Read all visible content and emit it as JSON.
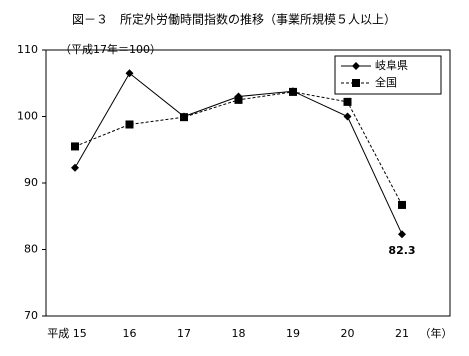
{
  "chart_data": {
    "type": "line",
    "title": "図－３　所定外労働時間指数の推移（事業所規模５人以上）",
    "subtitle": "（平成17年＝100）",
    "x_label": "（年）",
    "categories": [
      "平成 15",
      "16",
      "17",
      "18",
      "19",
      "20",
      "21"
    ],
    "series": [
      {
        "name": "岐阜県",
        "color": "#000000",
        "marker": "diamond",
        "dash": false,
        "values": [
          92.3,
          106.5,
          100,
          103,
          103.8,
          100,
          82.3
        ]
      },
      {
        "name": "全国",
        "color": "#000000",
        "marker": "square",
        "dash": true,
        "values": [
          95.5,
          98.8,
          99.9,
          102.5,
          103.7,
          102.2,
          86.7
        ]
      }
    ],
    "ylim": [
      70,
      110
    ],
    "yticks": [
      70,
      80,
      90,
      100,
      110
    ],
    "grid": false,
    "legend": "top-right"
  }
}
